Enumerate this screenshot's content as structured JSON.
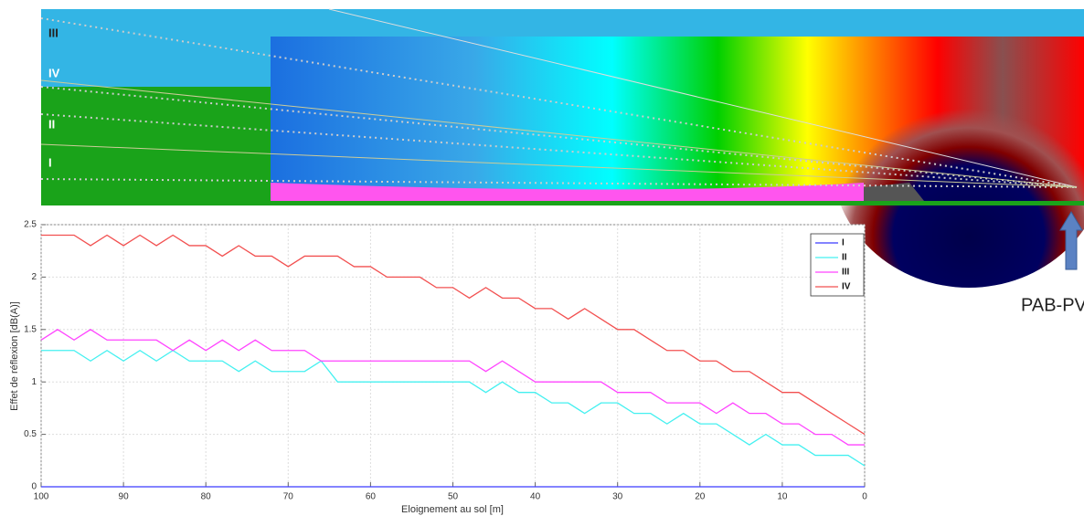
{
  "chart_data": {
    "type": "line",
    "y_label": "Effet de réflexion [dB(A)]",
    "x_label": "Eloignement au sol [m]",
    "x": [
      100,
      98,
      96,
      94,
      92,
      90,
      88,
      86,
      84,
      82,
      80,
      78,
      76,
      74,
      72,
      70,
      68,
      66,
      64,
      62,
      60,
      58,
      56,
      54,
      52,
      50,
      48,
      46,
      44,
      42,
      40,
      38,
      36,
      34,
      32,
      30,
      28,
      26,
      24,
      22,
      20,
      18,
      16,
      14,
      12,
      10,
      8,
      6,
      4,
      2,
      0
    ],
    "xlim": [
      100,
      0
    ],
    "xticks": [
      100,
      90,
      80,
      70,
      60,
      50,
      40,
      30,
      20,
      10,
      0
    ],
    "ylim": [
      0,
      2.5
    ],
    "yticks": [
      0,
      0.5,
      1,
      1.5,
      2,
      2.5
    ],
    "grid": true,
    "legend": "upper right",
    "series": [
      {
        "name": "I",
        "color": "#3b3bff",
        "values": [
          0,
          0,
          0,
          0,
          0,
          0,
          0,
          0,
          0,
          0,
          0,
          0,
          0,
          0,
          0,
          0,
          0,
          0,
          0,
          0,
          0,
          0,
          0,
          0,
          0,
          0,
          0,
          0,
          0,
          0,
          0,
          0,
          0,
          0,
          0,
          0,
          0,
          0,
          0,
          0,
          0,
          0,
          0,
          0,
          0,
          0,
          0,
          0,
          0,
          0,
          0
        ]
      },
      {
        "name": "II",
        "color": "#44f0f0",
        "values": [
          1.3,
          1.3,
          1.3,
          1.2,
          1.3,
          1.2,
          1.3,
          1.2,
          1.3,
          1.2,
          1.2,
          1.2,
          1.1,
          1.2,
          1.1,
          1.1,
          1.1,
          1.2,
          1.0,
          1.0,
          1.0,
          1.0,
          1.0,
          1.0,
          1.0,
          1.0,
          1.0,
          0.9,
          1.0,
          0.9,
          0.9,
          0.8,
          0.8,
          0.7,
          0.8,
          0.8,
          0.7,
          0.7,
          0.6,
          0.7,
          0.6,
          0.6,
          0.5,
          0.4,
          0.5,
          0.4,
          0.4,
          0.3,
          0.3,
          0.3,
          0.2
        ]
      },
      {
        "name": "III",
        "color": "#ff44ff",
        "values": [
          1.4,
          1.5,
          1.4,
          1.5,
          1.4,
          1.4,
          1.4,
          1.4,
          1.3,
          1.4,
          1.3,
          1.4,
          1.3,
          1.4,
          1.3,
          1.3,
          1.3,
          1.2,
          1.2,
          1.2,
          1.2,
          1.2,
          1.2,
          1.2,
          1.2,
          1.2,
          1.2,
          1.1,
          1.2,
          1.1,
          1.0,
          1.0,
          1.0,
          1.0,
          1.0,
          0.9,
          0.9,
          0.9,
          0.8,
          0.8,
          0.8,
          0.7,
          0.8,
          0.7,
          0.7,
          0.6,
          0.6,
          0.5,
          0.5,
          0.4,
          0.4
        ]
      },
      {
        "name": "IV",
        "color": "#f25050",
        "values": [
          2.4,
          2.4,
          2.4,
          2.3,
          2.4,
          2.3,
          2.4,
          2.3,
          2.4,
          2.3,
          2.3,
          2.2,
          2.3,
          2.2,
          2.2,
          2.1,
          2.2,
          2.2,
          2.2,
          2.1,
          2.1,
          2.0,
          2.0,
          2.0,
          1.9,
          1.9,
          1.8,
          1.9,
          1.8,
          1.8,
          1.7,
          1.7,
          1.6,
          1.7,
          1.6,
          1.5,
          1.5,
          1.4,
          1.3,
          1.3,
          1.2,
          1.2,
          1.1,
          1.1,
          1.0,
          0.9,
          0.9,
          0.8,
          0.7,
          0.6,
          0.5
        ]
      }
    ]
  },
  "illustration": {
    "zone_labels": [
      "III",
      "IV",
      "II",
      "I"
    ],
    "source_label": "PAB-PV"
  }
}
